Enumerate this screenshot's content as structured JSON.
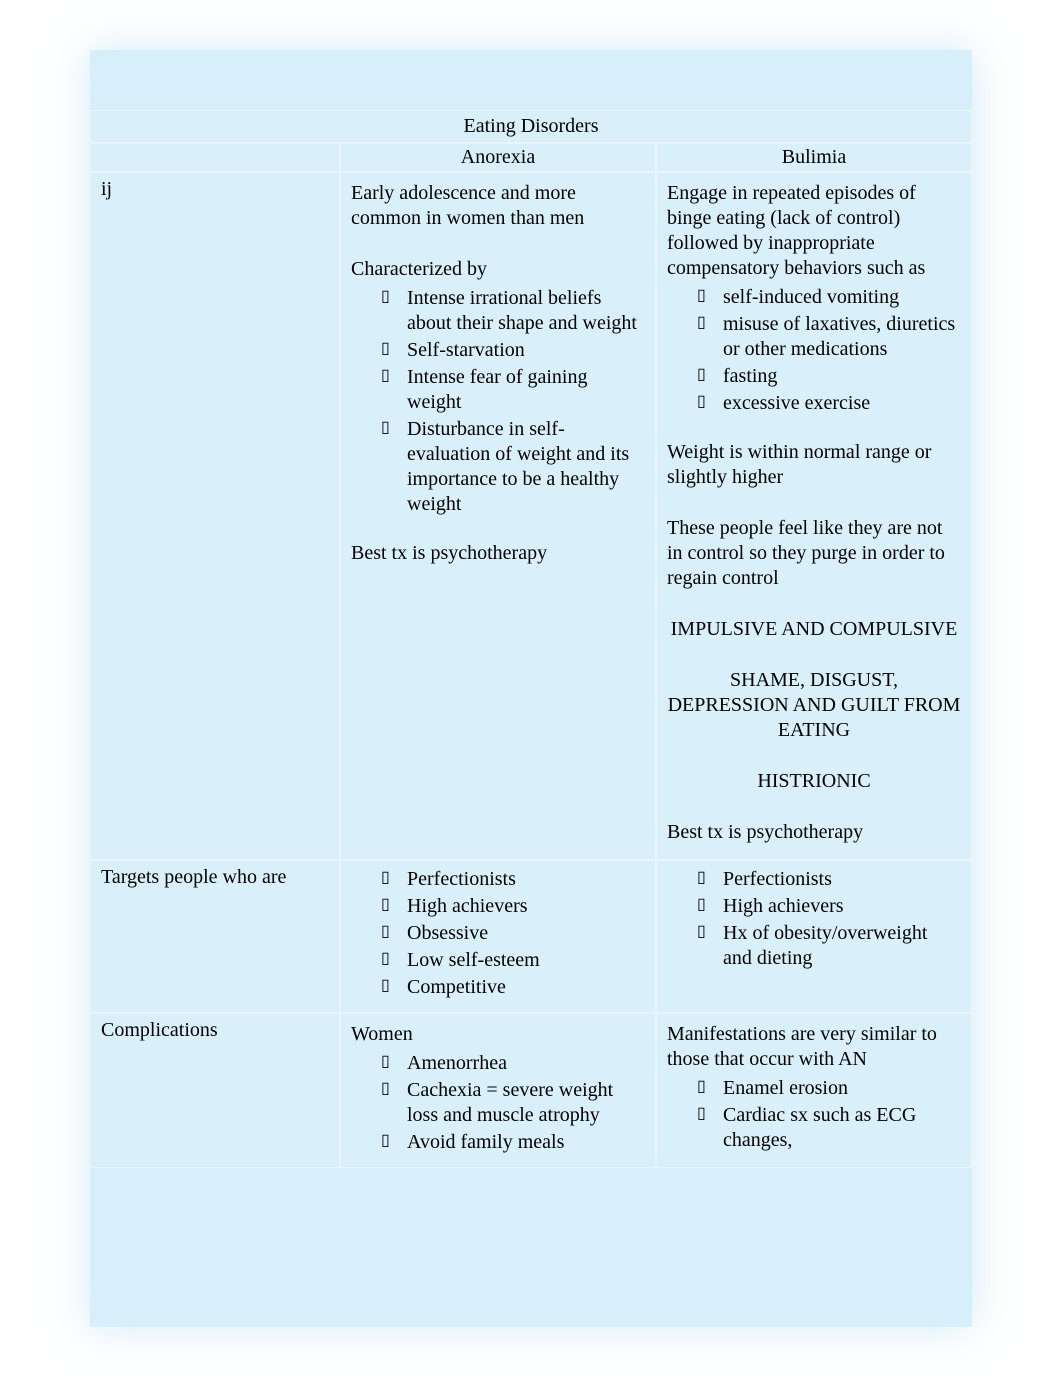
{
  "title": "Eating Disorders",
  "headers": {
    "col1": "",
    "col2": "Anorexia",
    "col3": "Bulimia"
  },
  "row1": {
    "label": "ij",
    "anorexia": {
      "intro": "Early adolescence and more common in women than men",
      "char_label": "Characterized by",
      "bullets": {
        "b1": "Intense irrational beliefs about their shape and weight",
        "b2": "Self-starvation",
        "b3": "Intense fear of gaining weight",
        "b4": "Disturbance in self-evaluation of weight and its importance to be a healthy weight"
      },
      "tx": "Best tx is psychotherapy"
    },
    "bulimia": {
      "intro": "Engage in repeated episodes of binge eating (lack of control) followed by inappropriate compensatory behaviors such as",
      "bullets": {
        "b1": "self-induced vomiting",
        "b2": "misuse of laxatives, diuretics or other medications",
        "b3": "fasting",
        "b4": "excessive exercise"
      },
      "weight": "Weight is within normal range or slightly higher",
      "control": "These people feel like they are not in control so they purge in order to regain control",
      "caps1": "IMPULSIVE AND COMPULSIVE",
      "caps2": "SHAME, DISGUST, DEPRESSION AND GUILT FROM EATING",
      "caps3": "HISTRIONIC",
      "tx": "Best tx is psychotherapy"
    }
  },
  "row2": {
    "label": "Targets people who are",
    "anorexia": {
      "bullets": {
        "b1": "Perfectionists",
        "b2": "High achievers",
        "b3": "Obsessive",
        "b4": "Low self-esteem",
        "b5": "Competitive"
      }
    },
    "bulimia": {
      "bullets": {
        "b1": "Perfectionists",
        "b2": "High achievers",
        "b3": "Hx of obesity/overweight and dieting"
      }
    }
  },
  "row3": {
    "label": "Complications",
    "anorexia": {
      "intro": "Women",
      "bullets": {
        "b1": "Amenorrhea",
        "b2": "Cachexia = severe weight loss and muscle atrophy",
        "b3": "Avoid family meals"
      }
    },
    "bulimia": {
      "intro": "Manifestations are very similar to those that occur with AN",
      "bullets": {
        "b1": "Enamel erosion",
        "b2": "Cardiac sx such as ECG changes,"
      }
    }
  }
}
